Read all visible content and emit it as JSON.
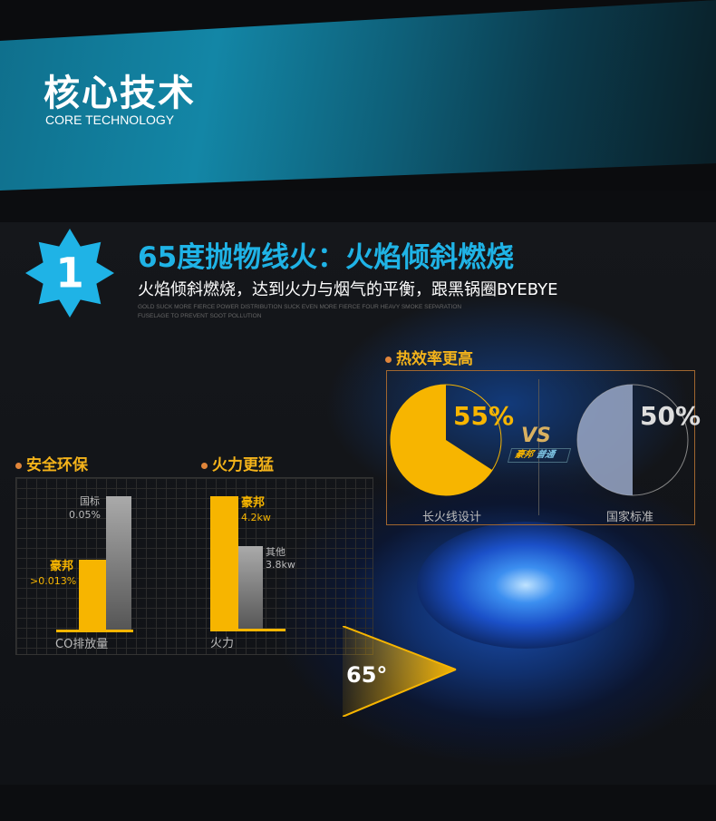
{
  "header": {
    "title": "核心技术",
    "subtitle": "CORE TECHNOLOGY"
  },
  "feature": {
    "number": "1",
    "title": "65度抛物线火：火焰倾斜燃烧",
    "subtitle": "火焰倾斜燃烧，达到火力与烟气的平衡，跟黑锅圈BYEBYE",
    "fine_print_1": "GOLD SUCK MORE FIERCE POWER DISTRIBUTION  SUCK EVEN MORE FIERCE FOUR HEAVY SMOKE SEPARATION",
    "fine_print_2": "FUSELAGE TO PREVENT SOOT POLLUTION"
  },
  "safety": {
    "heading": "安全环保",
    "axis": "CO排放量",
    "brand_label": "豪邦",
    "brand_value": ">0.013%",
    "other_label": "国标",
    "other_value": "0.05%"
  },
  "power": {
    "heading": "火力更猛",
    "axis": "火力",
    "brand_label": "豪邦",
    "brand_value": "4.2kw",
    "other_label": "其他",
    "other_value": "3.8kw"
  },
  "efficiency": {
    "heading": "热效率更高",
    "left_pct": "55%",
    "left_caption": "长火线设计",
    "right_pct": "50%",
    "right_caption": "国家标准",
    "vs": "VS",
    "vs_left": "豪邦",
    "vs_right": "普通"
  },
  "angle": {
    "label": "65°"
  },
  "colors": {
    "accent": "#f7b500",
    "title_blue": "#1fb3e6",
    "badge_blue": "#1fb3e6"
  }
}
